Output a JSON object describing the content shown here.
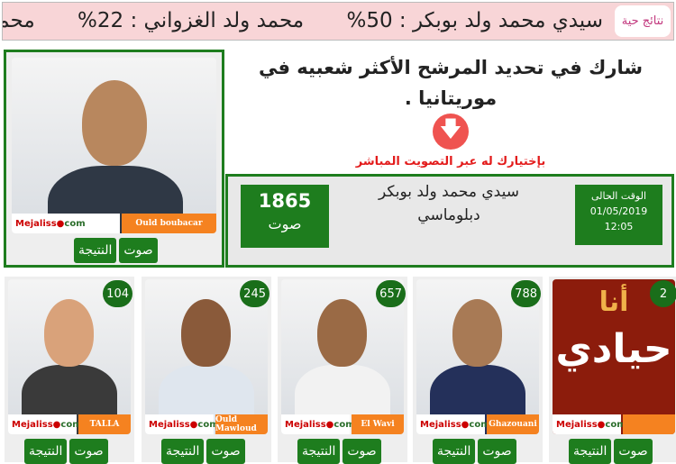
{
  "ticker": {
    "label": "نتائج حية",
    "items": [
      "سيدي محمد ولد بوبكر : 50%",
      "محمد ولد الغزواني : 22%",
      "محمد"
    ]
  },
  "featured": {
    "tag": "Ould boubacar",
    "brand": "Mejaliss",
    "brand2": "com",
    "vote": "صوت",
    "result": "النتيجة"
  },
  "headline": "شارك في تحديد المرشح الأكثر شعبيه في موريتانيا .",
  "instruction": "بإختيارك له عبر التصويت المباشر",
  "info": {
    "votes": "1865",
    "votes_unit": "صوت",
    "name": "سيدي محمد ولد بوبكر",
    "title": "دبلوماسي",
    "time_label": "الوقت الحالى",
    "date": "01/05/2019",
    "time": "12:05"
  },
  "candidates": [
    {
      "count": "104",
      "tag": "TALLA",
      "vote": "صوت",
      "result": "النتيجة"
    },
    {
      "count": "245",
      "tag": "Ould Mawloud",
      "vote": "صوت",
      "result": "النتيجة"
    },
    {
      "count": "657",
      "tag": "El Wavi",
      "vote": "صوت",
      "result": "النتيجة"
    },
    {
      "count": "788",
      "tag": "Ghazouani",
      "vote": "صوت",
      "result": "النتيجة"
    },
    {
      "count": "2",
      "tag": "",
      "neutral1": "أنا",
      "neutral2": "حيادي",
      "vote": "صوت",
      "result": "النتيجة"
    }
  ],
  "colors": {
    "green": "#1e7d1e",
    "orange": "#f58220",
    "ticker_bg": "#f8d5d7",
    "red": "#e31b1b"
  }
}
